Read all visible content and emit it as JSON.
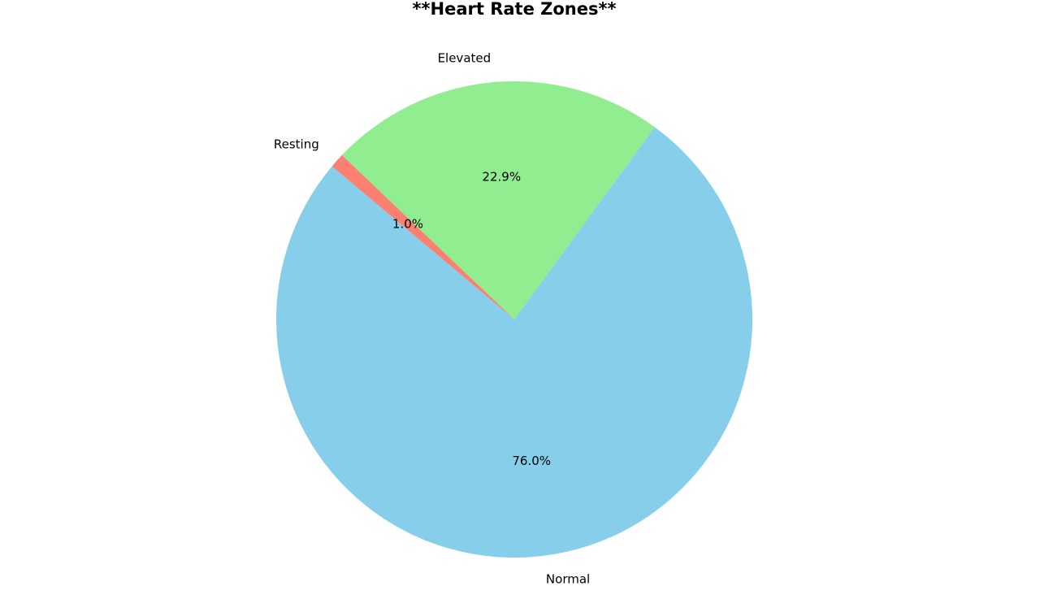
{
  "chart_data": {
    "type": "pie",
    "title": "**Heart Rate Zones**",
    "categories": [
      "Normal",
      "Elevated",
      "Resting"
    ],
    "values": [
      76.0,
      22.9,
      1.0
    ],
    "value_labels": [
      "76.0%",
      "22.9%",
      "1.0%"
    ],
    "colors": [
      "#87CEEB",
      "#90EE90",
      "#FA8072"
    ],
    "start_angle_deg": 140,
    "legend": "none"
  }
}
